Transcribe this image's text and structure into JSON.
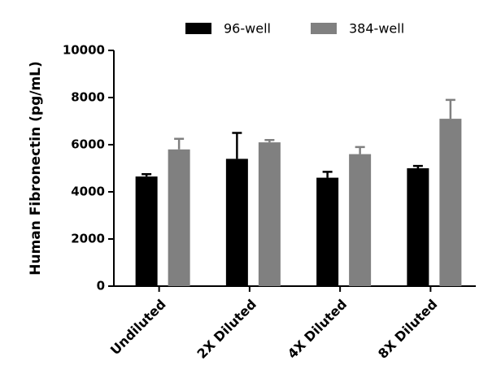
{
  "chart_data": {
    "type": "bar",
    "y_label": "Human Fibronectin (pg/mL)",
    "categories": [
      "Undiluted",
      "2X Diluted",
      "4X Diluted",
      "8X Diluted"
    ],
    "series": [
      {
        "name": "96-well",
        "color": "#000000",
        "values": [
          4650,
          5400,
          4600,
          5000
        ],
        "errors": [
          100,
          1100,
          250,
          100
        ]
      },
      {
        "name": "384-well",
        "color": "#808080",
        "values": [
          5800,
          6100,
          5600,
          7100
        ],
        "errors": [
          450,
          100,
          300,
          800
        ]
      }
    ],
    "ylim": [
      0,
      10000
    ],
    "yticks": [
      0,
      2000,
      4000,
      6000,
      8000,
      10000
    ]
  }
}
